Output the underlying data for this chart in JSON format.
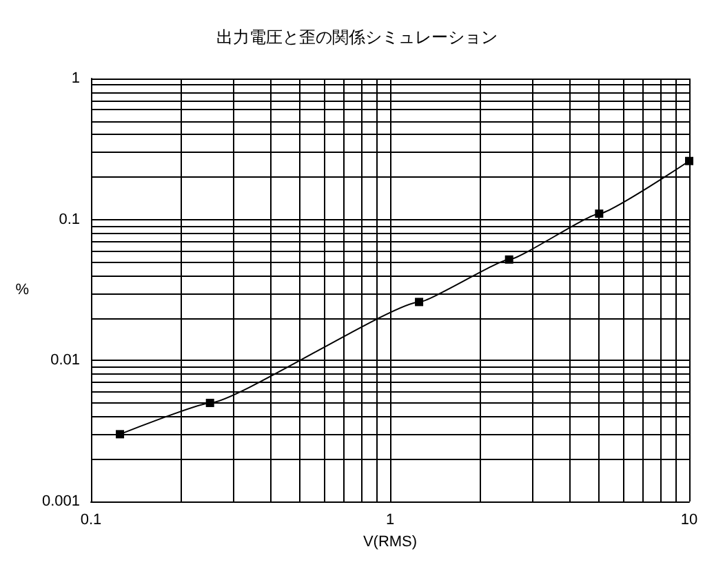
{
  "chart_data": {
    "type": "line",
    "title": "出力電圧と歪の関係シミュレーション",
    "xlabel": "V(RMS)",
    "ylabel": "%",
    "x": [
      0.125,
      0.25,
      1.25,
      2.5,
      5,
      10
    ],
    "series": [
      {
        "color": "#000000",
        "values": [
          0.003,
          0.005,
          0.026,
          0.052,
          0.11,
          0.26
        ]
      }
    ],
    "log": "xy",
    "grid": true,
    "marker": "square",
    "line_style": "solid",
    "xlim": [
      0.1,
      10
    ],
    "ylim": [
      0.001,
      1
    ],
    "xticks": [
      {
        "value": 0.1,
        "label": "0.1"
      },
      {
        "value": 0.2,
        "label": null
      },
      {
        "value": 0.3,
        "label": null
      },
      {
        "value": 0.4,
        "label": null
      },
      {
        "value": 0.5,
        "label": null
      },
      {
        "value": 0.6,
        "label": null
      },
      {
        "value": 0.7,
        "label": null
      },
      {
        "value": 0.8,
        "label": null
      },
      {
        "value": 0.9,
        "label": null
      },
      {
        "value": 1,
        "label": "1"
      },
      {
        "value": 2,
        "label": null
      },
      {
        "value": 3,
        "label": null
      },
      {
        "value": 4,
        "label": null
      },
      {
        "value": 5,
        "label": null
      },
      {
        "value": 6,
        "label": null
      },
      {
        "value": 7,
        "label": null
      },
      {
        "value": 8,
        "label": null
      },
      {
        "value": 9,
        "label": null
      },
      {
        "value": 10,
        "label": "10"
      }
    ],
    "yticks": [
      {
        "value": 0.001,
        "label": "0.001"
      },
      {
        "value": 0.002,
        "label": null
      },
      {
        "value": 0.003,
        "label": null
      },
      {
        "value": 0.004,
        "label": null
      },
      {
        "value": 0.005,
        "label": null
      },
      {
        "value": 0.006,
        "label": null
      },
      {
        "value": 0.007,
        "label": null
      },
      {
        "value": 0.008,
        "label": null
      },
      {
        "value": 0.009,
        "label": null
      },
      {
        "value": 0.01,
        "label": "0.01"
      },
      {
        "value": 0.02,
        "label": null
      },
      {
        "value": 0.03,
        "label": null
      },
      {
        "value": 0.04,
        "label": null
      },
      {
        "value": 0.05,
        "label": null
      },
      {
        "value": 0.06,
        "label": null
      },
      {
        "value": 0.07,
        "label": null
      },
      {
        "value": 0.08,
        "label": null
      },
      {
        "value": 0.09,
        "label": null
      },
      {
        "value": 0.1,
        "label": "0.1"
      },
      {
        "value": 0.2,
        "label": null
      },
      {
        "value": 0.3,
        "label": null
      },
      {
        "value": 0.4,
        "label": null
      },
      {
        "value": 0.5,
        "label": null
      },
      {
        "value": 0.6,
        "label": null
      },
      {
        "value": 0.7,
        "label": null
      },
      {
        "value": 0.8,
        "label": null
      },
      {
        "value": 0.9,
        "label": null
      },
      {
        "value": 1,
        "label": "1"
      }
    ]
  }
}
